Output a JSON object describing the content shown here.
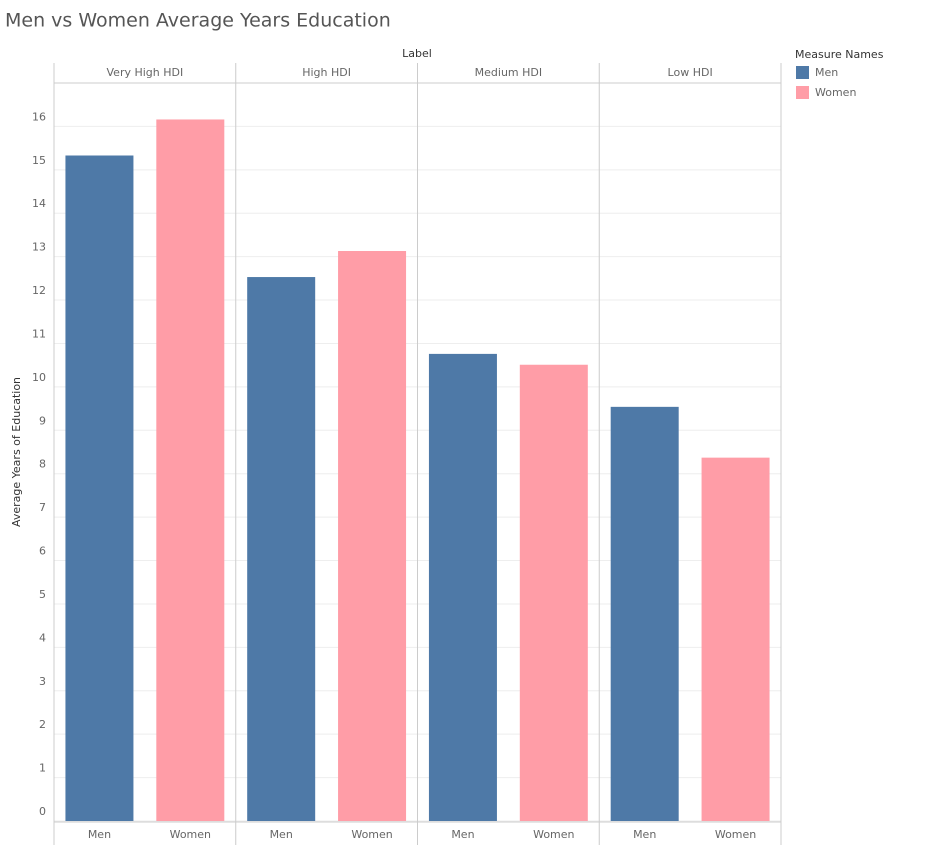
{
  "chart_data": {
    "type": "bar",
    "title": "Men vs Women Average Years Education",
    "column_header": "Label",
    "panels": [
      "Very High HDI",
      "High HDI",
      "Medium HDI",
      "Low HDI"
    ],
    "y_label": "Average Years of Education",
    "legend_title": "Measure Names",
    "series": [
      {
        "name": "Men",
        "color": "#4e79a7",
        "values": [
          15.33,
          12.53,
          10.76,
          9.54
        ]
      },
      {
        "name": "Women",
        "color": "#ff9da7",
        "values": [
          16.16,
          13.13,
          10.51,
          8.37
        ]
      }
    ],
    "ylim": [
      0,
      17
    ],
    "yticks": [
      0,
      1,
      2,
      3,
      4,
      5,
      6,
      7,
      8,
      9,
      10,
      11,
      12,
      13,
      14,
      15,
      16
    ],
    "grid": true
  }
}
